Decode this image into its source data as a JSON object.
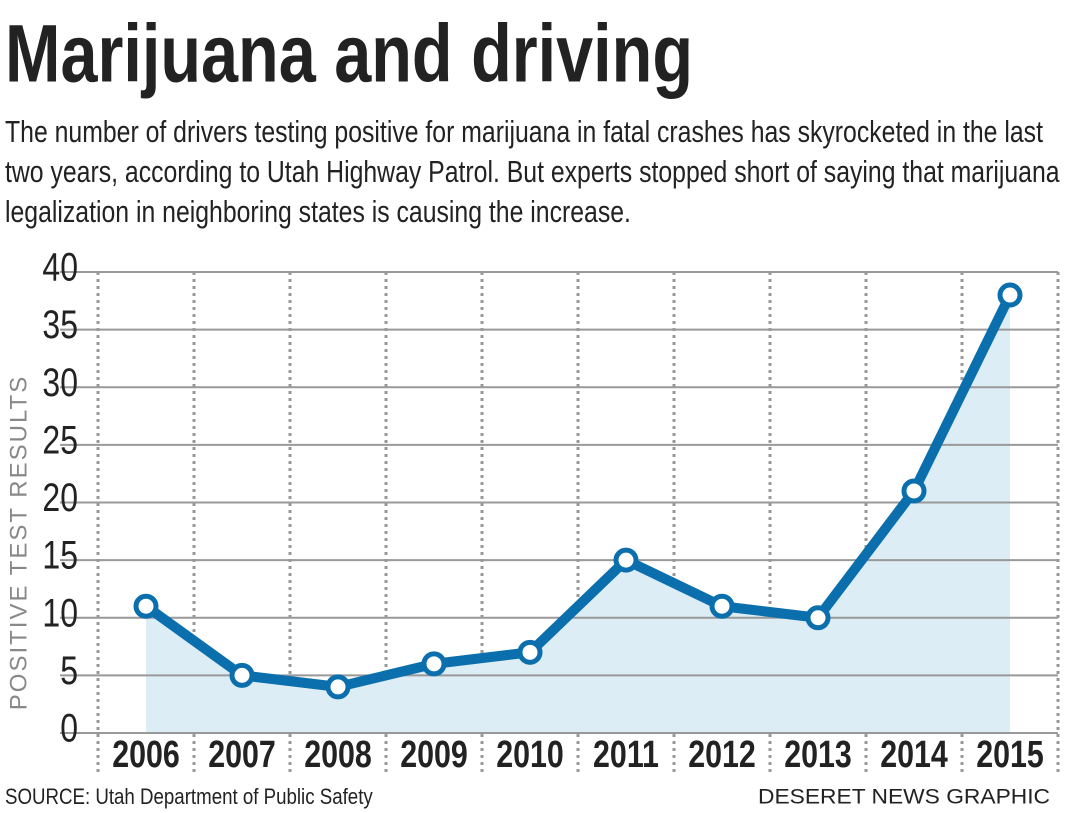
{
  "chart_data": {
    "type": "line",
    "title": "Marijuana and driving",
    "subtitle": "The number of drivers testing positive for marijuana in fatal crashes has skyrocketed in the last two years, according to Utah Highway Patrol. But experts stopped short of saying that marijuana legalization in neighboring states is causing the increase.",
    "y_label": "POSITIVE TEST RESULTS",
    "categories": [
      "2006",
      "2007",
      "2008",
      "2009",
      "2010",
      "2011",
      "2012",
      "2013",
      "2014",
      "2015"
    ],
    "values": [
      11,
      5,
      4,
      6,
      7,
      15,
      11,
      10,
      21,
      38
    ],
    "color": "#0b6fad",
    "fill_color": "#dcedf6",
    "ylim": [
      0,
      40
    ],
    "yticks": [
      0,
      5,
      10,
      15,
      20,
      25,
      30,
      35,
      40
    ],
    "grid": true,
    "source": "SOURCE: Utah Department of Public Safety",
    "credit": "DESERET NEWS GRAPHIC"
  }
}
